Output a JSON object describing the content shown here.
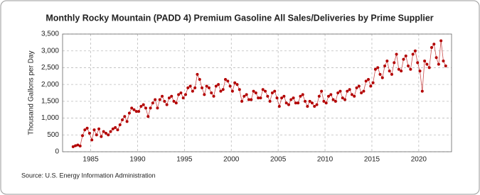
{
  "chart_data": {
    "type": "scatter",
    "title": "Monthly Rocky Mountain (PADD 4) Premium Gasoline All Sales/Deliveries by Prime Supplier",
    "y_label": "Thousand Gallons per Day",
    "source": "Source: U.S. Energy Information Administration",
    "xlim": [
      1982,
      2023.5
    ],
    "xticks": [
      1985,
      1990,
      1995,
      2000,
      2005,
      2010,
      2015,
      2020
    ],
    "ylim": [
      0,
      3500
    ],
    "yticks": [
      0,
      500,
      {
        "value": 1000,
        "label": "1,000"
      },
      {
        "value": 1500,
        "label": "1,500"
      },
      {
        "value": 2000,
        "label": "2,000"
      },
      {
        "value": 2500,
        "label": "2,500"
      },
      {
        "value": 3000,
        "label": "3,000"
      },
      {
        "value": 3500,
        "label": "3,500"
      }
    ],
    "grid": true,
    "series": [
      {
        "color": "#b30000",
        "x": [
          1983.125,
          1983.375,
          1983.625,
          1983.875,
          1984.125,
          1984.375,
          1984.625,
          1984.875,
          1985.125,
          1985.375,
          1985.625,
          1985.875,
          1986.125,
          1986.375,
          1986.625,
          1986.875,
          1987.125,
          1987.375,
          1987.625,
          1987.875,
          1988.125,
          1988.375,
          1988.625,
          1988.875,
          1989.125,
          1989.375,
          1989.625,
          1989.875,
          1990.125,
          1990.375,
          1990.625,
          1990.875,
          1991.125,
          1991.375,
          1991.625,
          1991.875,
          1992.125,
          1992.375,
          1992.625,
          1992.875,
          1993.125,
          1993.375,
          1993.625,
          1993.875,
          1994.125,
          1994.375,
          1994.625,
          1994.875,
          1995.125,
          1995.375,
          1995.625,
          1995.875,
          1996.125,
          1996.375,
          1996.625,
          1996.875,
          1997.125,
          1997.375,
          1997.625,
          1997.875,
          1998.125,
          1998.375,
          1998.625,
          1998.875,
          1999.125,
          1999.375,
          1999.625,
          1999.875,
          2000.125,
          2000.375,
          2000.625,
          2000.875,
          2001.125,
          2001.375,
          2001.625,
          2001.875,
          2002.125,
          2002.375,
          2002.625,
          2002.875,
          2003.125,
          2003.375,
          2003.625,
          2003.875,
          2004.125,
          2004.375,
          2004.625,
          2004.875,
          2005.125,
          2005.375,
          2005.625,
          2005.875,
          2006.125,
          2006.375,
          2006.625,
          2006.875,
          2007.125,
          2007.375,
          2007.625,
          2007.875,
          2008.125,
          2008.375,
          2008.625,
          2008.875,
          2009.125,
          2009.375,
          2009.625,
          2009.875,
          2010.125,
          2010.375,
          2010.625,
          2010.875,
          2011.125,
          2011.375,
          2011.625,
          2011.875,
          2012.125,
          2012.375,
          2012.625,
          2012.875,
          2013.125,
          2013.375,
          2013.625,
          2013.875,
          2014.125,
          2014.375,
          2014.625,
          2014.875,
          2015.125,
          2015.375,
          2015.625,
          2015.875,
          2016.125,
          2016.375,
          2016.625,
          2016.875,
          2017.125,
          2017.375,
          2017.625,
          2017.875,
          2018.125,
          2018.375,
          2018.625,
          2018.875,
          2019.125,
          2019.375,
          2019.625,
          2019.875,
          2020.125,
          2020.375,
          2020.625,
          2020.875,
          2021.125,
          2021.375,
          2021.625,
          2021.875,
          2022.125,
          2022.375,
          2022.625,
          2022.875
        ],
        "values": [
          150,
          180,
          200,
          170,
          480,
          650,
          700,
          550,
          350,
          650,
          500,
          680,
          450,
          600,
          550,
          500,
          600,
          680,
          720,
          650,
          800,
          950,
          1050,
          900,
          1150,
          1300,
          1250,
          1200,
          1200,
          1350,
          1400,
          1300,
          1050,
          1300,
          1450,
          1550,
          1300,
          1550,
          1650,
          1500,
          1400,
          1600,
          1650,
          1500,
          1450,
          1700,
          1750,
          1600,
          1700,
          1900,
          1950,
          1800,
          1900,
          2300,
          2150,
          1900,
          1700,
          1950,
          1900,
          1750,
          1650,
          1950,
          2000,
          1800,
          1850,
          2150,
          2100,
          1950,
          1800,
          2050,
          2000,
          1850,
          1500,
          1650,
          1700,
          1550,
          1550,
          1800,
          1750,
          1600,
          1600,
          1850,
          1800,
          1650,
          1500,
          1750,
          1800,
          1600,
          1350,
          1600,
          1650,
          1450,
          1400,
          1550,
          1600,
          1450,
          1450,
          1650,
          1700,
          1500,
          1350,
          1500,
          1450,
          1350,
          1400,
          1650,
          1800,
          1500,
          1450,
          1650,
          1700,
          1550,
          1500,
          1750,
          1800,
          1600,
          1550,
          1800,
          1850,
          1700,
          1650,
          1900,
          1950,
          1750,
          1800,
          2100,
          2150,
          1950,
          2050,
          2450,
          2500,
          2300,
          2200,
          2550,
          2700,
          2400,
          2300,
          2650,
          2900,
          2450,
          2400,
          2750,
          2850,
          2550,
          2450,
          2900,
          3000,
          2650,
          2400,
          1800,
          2700,
          2600,
          2500,
          3100,
          3200,
          2800,
          2600,
          3300,
          2700,
          2550
        ]
      }
    ]
  }
}
